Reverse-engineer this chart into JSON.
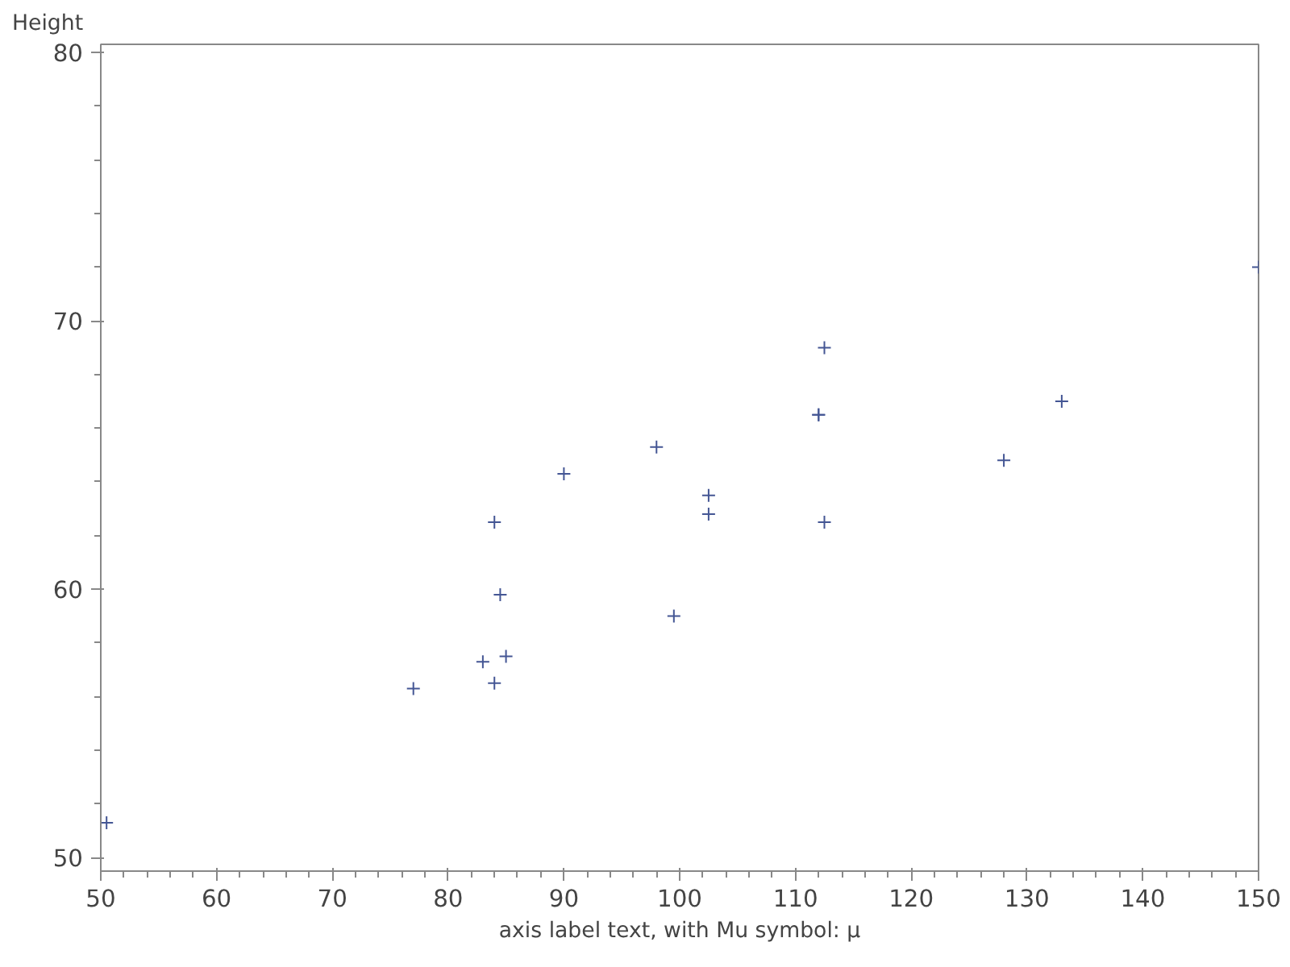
{
  "chart_data": {
    "type": "scatter",
    "xlabel": "axis label text, with Mu symbol: µ",
    "ylabel": "Height",
    "x": [
      112.5,
      84.0,
      98.0,
      102.5,
      102.5,
      83.0,
      84.5,
      112.5,
      84.0,
      99.5,
      50.5,
      90.0,
      77.0,
      112.0,
      150.0,
      128.0,
      133.0,
      85.0,
      112.0
    ],
    "values": [
      69.0,
      56.5,
      65.3,
      62.8,
      63.5,
      57.3,
      59.8,
      62.5,
      62.5,
      59.0,
      51.3,
      64.3,
      56.3,
      66.5,
      72.0,
      64.8,
      67.0,
      57.5,
      66.5
    ],
    "color": "#445694",
    "marker": "cross",
    "xlim": [
      50,
      150
    ],
    "xticks": [
      50,
      60,
      70,
      80,
      90,
      100,
      110,
      120,
      130,
      140,
      150
    ],
    "ylim": [
      49.5,
      80.3
    ],
    "yticks": [
      50,
      60,
      70,
      80
    ],
    "grid": false
  }
}
